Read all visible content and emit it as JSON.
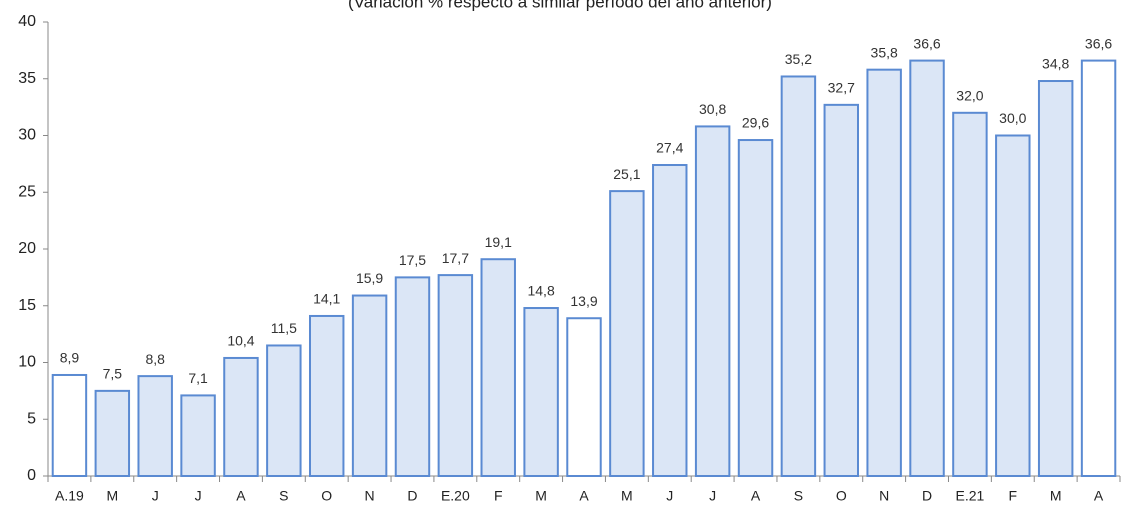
{
  "chart_data": {
    "type": "bar",
    "subtitle": "(Variación % respecto a similar período del año anterior)",
    "categories": [
      "A.19",
      "M",
      "J",
      "J",
      "A",
      "S",
      "O",
      "N",
      "D",
      "E.20",
      "F",
      "M",
      "A",
      "M",
      "J",
      "J",
      "A",
      "S",
      "O",
      "N",
      "D",
      "E.21",
      "F",
      "M",
      "A"
    ],
    "values": [
      8.9,
      7.5,
      8.8,
      7.1,
      10.4,
      11.5,
      14.1,
      15.9,
      17.5,
      17.7,
      19.1,
      14.8,
      13.9,
      25.1,
      27.4,
      30.8,
      29.6,
      35.2,
      32.7,
      35.8,
      36.6,
      32.0,
      30.0,
      34.8,
      36.6
    ],
    "value_labels": [
      "8,9",
      "7,5",
      "8,8",
      "7,1",
      "10,4",
      "11,5",
      "14,1",
      "15,9",
      "17,5",
      "17,7",
      "19,1",
      "14,8",
      "13,9",
      "25,1",
      "27,4",
      "30,8",
      "29,6",
      "35,2",
      "32,7",
      "35,8",
      "36,6",
      "32,0",
      "30,0",
      "34,8",
      "36,6"
    ],
    "colors": [
      "#ffffff",
      "#dbe6f6",
      "#dbe6f6",
      "#dbe6f6",
      "#dbe6f6",
      "#dbe6f6",
      "#dbe6f6",
      "#dbe6f6",
      "#dbe6f6",
      "#dbe6f6",
      "#dbe6f6",
      "#dbe6f6",
      "#ffffff",
      "#dbe6f6",
      "#dbe6f6",
      "#dbe6f6",
      "#dbe6f6",
      "#dbe6f6",
      "#dbe6f6",
      "#dbe6f6",
      "#dbe6f6",
      "#dbe6f6",
      "#dbe6f6",
      "#dbe6f6",
      "#ffffff"
    ],
    "edge_color": "#5a8ad2",
    "ylim": [
      0,
      40
    ],
    "yticks": [
      0,
      5,
      10,
      15,
      20,
      25,
      30,
      35,
      40
    ],
    "grid": false
  }
}
